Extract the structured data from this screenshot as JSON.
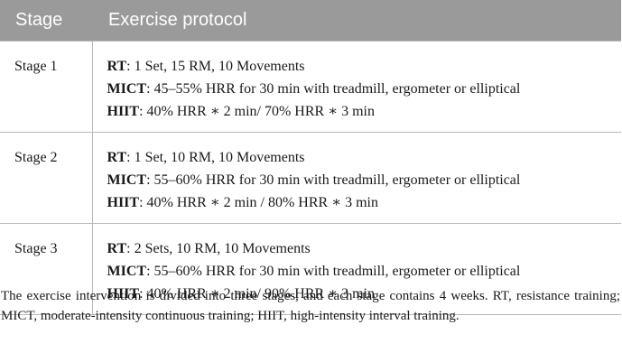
{
  "table": {
    "headers": {
      "stage": "Stage",
      "protocol": "Exercise protocol"
    },
    "rows": [
      {
        "stage": "Stage 1",
        "lines": [
          {
            "label": "RT",
            "text": ": 1 Set, 15 RM, 10 Movements"
          },
          {
            "label": "MICT",
            "text": ": 45–55% HRR for 30 min with treadmill, ergometer or elliptical"
          },
          {
            "label": "HIIT",
            "text": ": 40% HRR ∗ 2 min/ 70% HRR ∗ 3 min"
          }
        ]
      },
      {
        "stage": "Stage 2",
        "lines": [
          {
            "label": "RT",
            "text": ": 1 Set, 10 RM, 10 Movements"
          },
          {
            "label": "MICT",
            "text": ": 55–60% HRR for 30 min with treadmill, ergometer or elliptical"
          },
          {
            "label": "HIIT",
            "text": ": 40% HRR ∗ 2 min / 80% HRR ∗ 3 min"
          }
        ]
      },
      {
        "stage": "Stage 3",
        "lines": [
          {
            "label": "RT",
            "text": ": 2 Sets, 10 RM, 10 Movements"
          },
          {
            "label": "MICT",
            "text": ": 55–60% HRR for 30 min with treadmill, ergometer or elliptical"
          },
          {
            "label": "HIIT",
            "text": ": 40% HRR ∗ 2 min/ 90% HRR ∗ 3 min"
          }
        ]
      }
    ]
  },
  "caption": {
    "text": "The exercise intervention is divided into three stages, and each stage contains 4 weeks. RT, resistance training; MICT, moderate-intensity continuous training; HIIT, high-intensity interval training."
  },
  "colors": {
    "header_bg": "#9a9a9a",
    "header_text": "#ffffff",
    "rule": "#b8b8b8",
    "text": "#1a1a1a"
  }
}
